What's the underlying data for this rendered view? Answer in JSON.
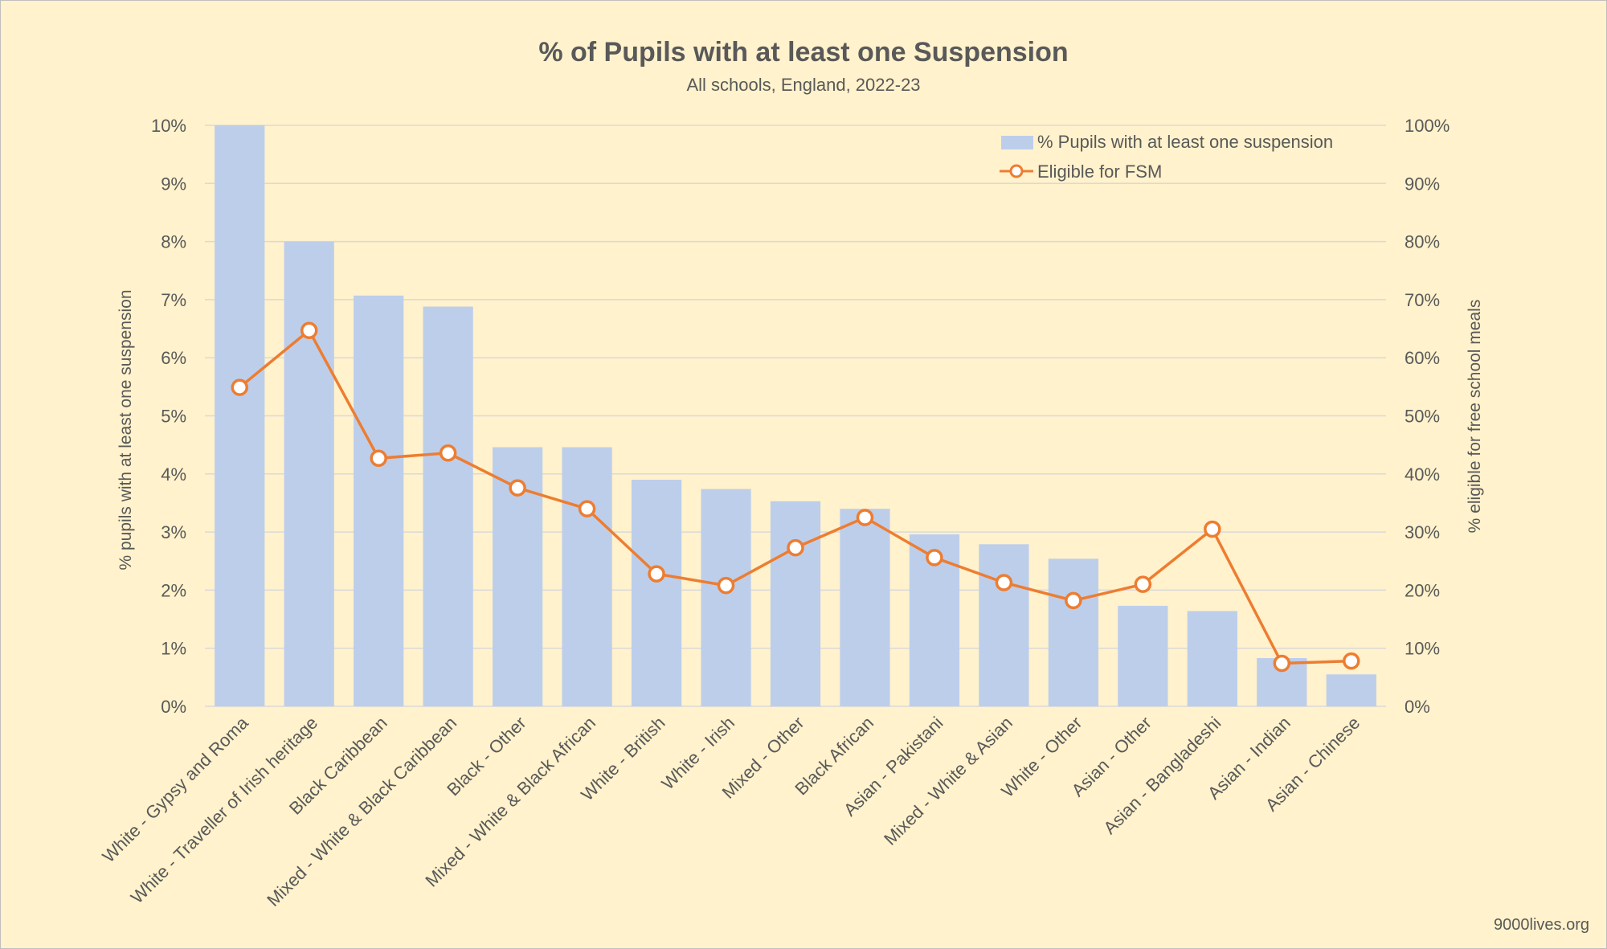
{
  "chart_data": {
    "type": "bar+line",
    "title": "% of Pupils with at least one Suspension",
    "subtitle": "All schools, England, 2022-23",
    "ylabel": "% pupils with at least one suspension",
    "y2label": "% eligible for free school meals",
    "ylim": [
      0,
      10
    ],
    "y2lim": [
      0,
      100
    ],
    "yticks": [
      "0%",
      "1%",
      "2%",
      "3%",
      "4%",
      "5%",
      "6%",
      "7%",
      "8%",
      "9%",
      "10%"
    ],
    "y2ticks": [
      "0%",
      "10%",
      "20%",
      "30%",
      "40%",
      "50%",
      "60%",
      "70%",
      "80%",
      "90%",
      "100%"
    ],
    "grid": true,
    "legend_position": "top-right",
    "categories": [
      "White - Gypsy and Roma",
      "White - Traveller of Irish heritage",
      "Black Caribbean",
      "Mixed - White & Black Caribbean",
      "Black - Other",
      "Mixed - White & Black African",
      "White - British",
      "White - Irish",
      "Mixed - Other",
      "Black African",
      "Asian - Pakistani",
      "Mixed - White & Asian",
      "White - Other",
      "Asian - Other",
      "Asian - Bangladeshi",
      "Asian - Indian",
      "Asian - Chinese"
    ],
    "series": [
      {
        "name": "% Pupils with at least one suspension",
        "type": "bar",
        "axis": "left",
        "color": "#BDCEEB",
        "values": [
          10.0,
          8.0,
          7.07,
          6.88,
          4.46,
          4.46,
          3.9,
          3.74,
          3.53,
          3.4,
          2.96,
          2.79,
          2.54,
          1.73,
          1.64,
          0.83,
          0.55
        ]
      },
      {
        "name": "Eligible for FSM",
        "type": "line",
        "axis": "right",
        "color": "#ED7D31",
        "values": [
          54.9,
          64.7,
          42.7,
          43.6,
          37.6,
          34.0,
          22.8,
          20.8,
          27.3,
          32.5,
          25.6,
          21.3,
          18.2,
          21.0,
          30.5,
          7.4,
          7.8
        ]
      }
    ]
  },
  "credit": "9000lives.org"
}
